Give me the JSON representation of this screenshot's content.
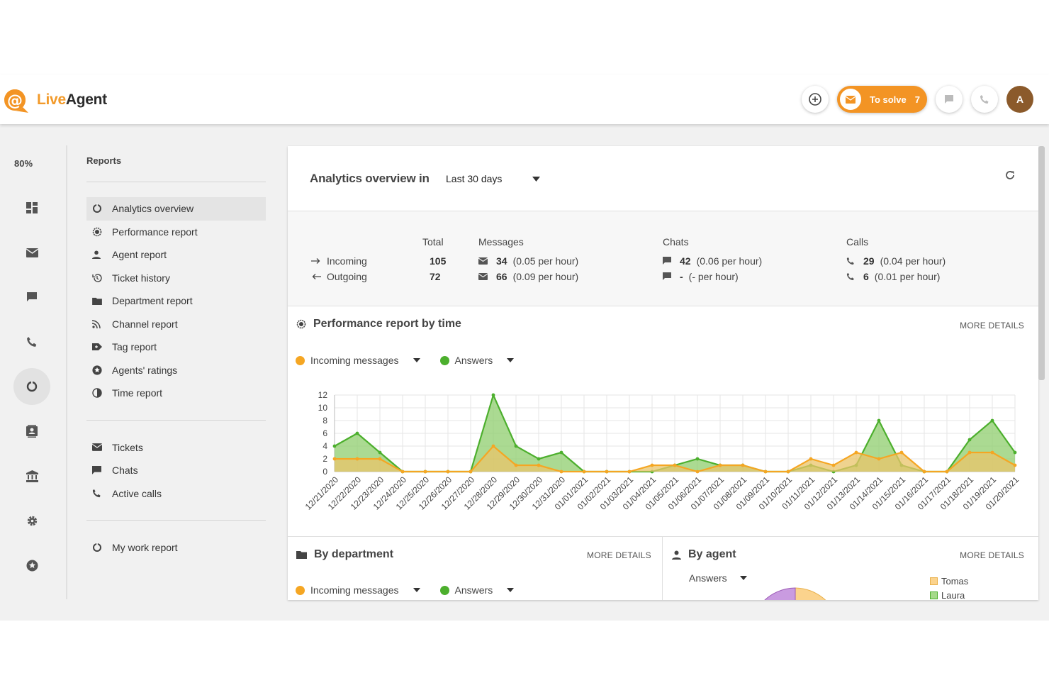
{
  "app": {
    "logo_live": "Live",
    "logo_agent": "Agent",
    "zoom": "80%"
  },
  "topbar": {
    "solve_label": "To solve",
    "solve_count": "7",
    "avatar_initial": "A"
  },
  "reports": {
    "title": "Reports",
    "items": [
      {
        "label": "Analytics overview",
        "icon": "donut-icon",
        "active": true
      },
      {
        "label": "Performance report",
        "icon": "gauge-icon"
      },
      {
        "label": "Agent report",
        "icon": "person-icon"
      },
      {
        "label": "Ticket history",
        "icon": "history-icon"
      },
      {
        "label": "Department report",
        "icon": "folder-icon"
      },
      {
        "label": "Channel report",
        "icon": "rss-icon"
      },
      {
        "label": "Tag report",
        "icon": "tag-icon"
      },
      {
        "label": "Agents' ratings",
        "icon": "star-icon"
      },
      {
        "label": "Time report",
        "icon": "clock-icon"
      }
    ],
    "items2": [
      {
        "label": "Tickets",
        "icon": "mail-icon"
      },
      {
        "label": "Chats",
        "icon": "chat-icon"
      },
      {
        "label": "Active calls",
        "icon": "phone-icon"
      }
    ],
    "items3": [
      {
        "label": "My work report",
        "icon": "donut-icon"
      }
    ]
  },
  "header": {
    "title": "Analytics overview in",
    "period": "Last 30 days"
  },
  "stats": {
    "col_total": "Total",
    "col_messages": "Messages",
    "col_chats": "Chats",
    "col_calls": "Calls",
    "rows": [
      {
        "label": "Incoming",
        "total": "105",
        "msg": "34",
        "msg_rate": "(0.05 per hour)",
        "chat": "42",
        "chat_rate": "(0.06 per hour)",
        "call": "29",
        "call_rate": "(0.04 per hour)"
      },
      {
        "label": "Outgoing",
        "total": "72",
        "msg": "66",
        "msg_rate": "(0.09 per hour)",
        "chat": "-",
        "chat_rate": "(- per hour)",
        "call": "6",
        "call_rate": "(0.01 per hour)"
      }
    ]
  },
  "perf": {
    "title": "Performance report by time",
    "more": "MORE DETAILS",
    "legend1": "Incoming messages",
    "legend2": "Answers"
  },
  "chart_data": {
    "type": "area",
    "x": [
      "12/21/2020",
      "12/22/2020",
      "12/23/2020",
      "12/24/2020",
      "12/25/2020",
      "12/26/2020",
      "12/27/2020",
      "12/28/2020",
      "12/29/2020",
      "12/30/2020",
      "12/31/2020",
      "01/01/2021",
      "01/02/2021",
      "01/03/2021",
      "01/04/2021",
      "01/05/2021",
      "01/06/2021",
      "01/07/2021",
      "01/08/2021",
      "01/09/2021",
      "01/10/2021",
      "01/11/2021",
      "01/12/2021",
      "01/13/2021",
      "01/14/2021",
      "01/15/2021",
      "01/16/2021",
      "01/17/2021",
      "01/18/2021",
      "01/19/2021",
      "01/20/2021"
    ],
    "series": [
      {
        "name": "Answers",
        "color": "#4caf2d",
        "fill": "#8fce6e",
        "values": [
          4,
          6,
          3,
          0,
          0,
          0,
          0,
          12,
          4,
          2,
          3,
          0,
          0,
          0,
          0,
          1,
          2,
          1,
          1,
          0,
          0,
          1,
          0,
          1,
          8,
          1,
          0,
          0,
          5,
          8,
          3
        ]
      },
      {
        "name": "Incoming messages",
        "color": "#f5a623",
        "fill": "#e9c46a",
        "values": [
          2,
          2,
          2,
          0,
          0,
          0,
          0,
          4,
          1,
          1,
          0,
          0,
          0,
          0,
          1,
          1,
          0,
          1,
          1,
          0,
          0,
          2,
          1,
          3,
          2,
          3,
          0,
          0,
          3,
          3,
          1
        ]
      }
    ],
    "ylim": [
      0,
      12
    ],
    "yticks": [
      0,
      2,
      4,
      6,
      8,
      10,
      12
    ],
    "grid": true
  },
  "by_department": {
    "title": "By department",
    "more": "MORE DETAILS",
    "legend1": "Incoming messages",
    "legend2": "Answers"
  },
  "by_agent": {
    "title": "By agent",
    "more": "MORE DETAILS",
    "select": "Answers",
    "agents": [
      "Tomas",
      "Laura"
    ]
  },
  "colors": {
    "accent": "#f39424",
    "green": "#4caf2d",
    "orange": "#f5a623"
  }
}
